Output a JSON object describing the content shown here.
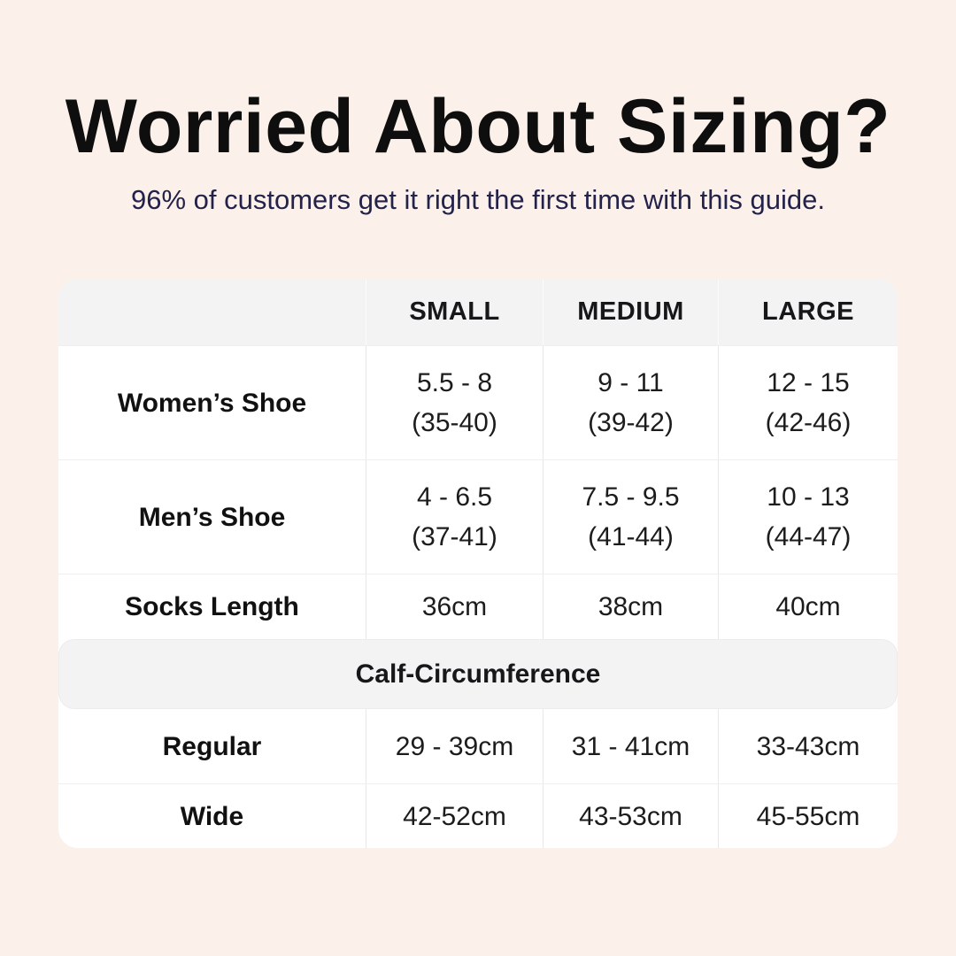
{
  "page": {
    "title": "Worried About Sizing?",
    "subtitle": "96% of customers get it right the first time with this guide.",
    "colors": {
      "background": "#fbf1ea",
      "title": "#0e0e0e",
      "subtitle": "#23224a",
      "table_bg": "#ffffff",
      "header_band_bg": "#f3f3f4",
      "divider": "#e8e8e8",
      "text": "#1c1c1c"
    }
  },
  "table": {
    "headers": [
      "",
      "SMALL",
      "MEDIUM",
      "LARGE"
    ],
    "rows": [
      {
        "label": "Women’s Shoe",
        "small": [
          "5.5 - 8",
          "(35-40)"
        ],
        "medium": [
          "9 - 11",
          "(39-42)"
        ],
        "large": [
          "12 - 15",
          "(42-46)"
        ]
      },
      {
        "label": "Men’s Shoe",
        "small": [
          "4 - 6.5",
          "(37-41)"
        ],
        "medium": [
          "7.5 - 9.5",
          "(41-44)"
        ],
        "large": [
          "10 - 13",
          "(44-47)"
        ]
      },
      {
        "label": "Socks Length",
        "small": [
          "36cm"
        ],
        "medium": [
          "38cm"
        ],
        "large": [
          "40cm"
        ]
      }
    ],
    "section": {
      "title": "Calf-Circumference",
      "rows": [
        {
          "label": "Regular",
          "small": [
            "29 - 39cm"
          ],
          "medium": [
            "31 - 41cm"
          ],
          "large": [
            "33-43cm"
          ]
        },
        {
          "label": "Wide",
          "small": [
            "42-52cm"
          ],
          "medium": [
            "43-53cm"
          ],
          "large": [
            "45-55cm"
          ]
        }
      ]
    }
  }
}
